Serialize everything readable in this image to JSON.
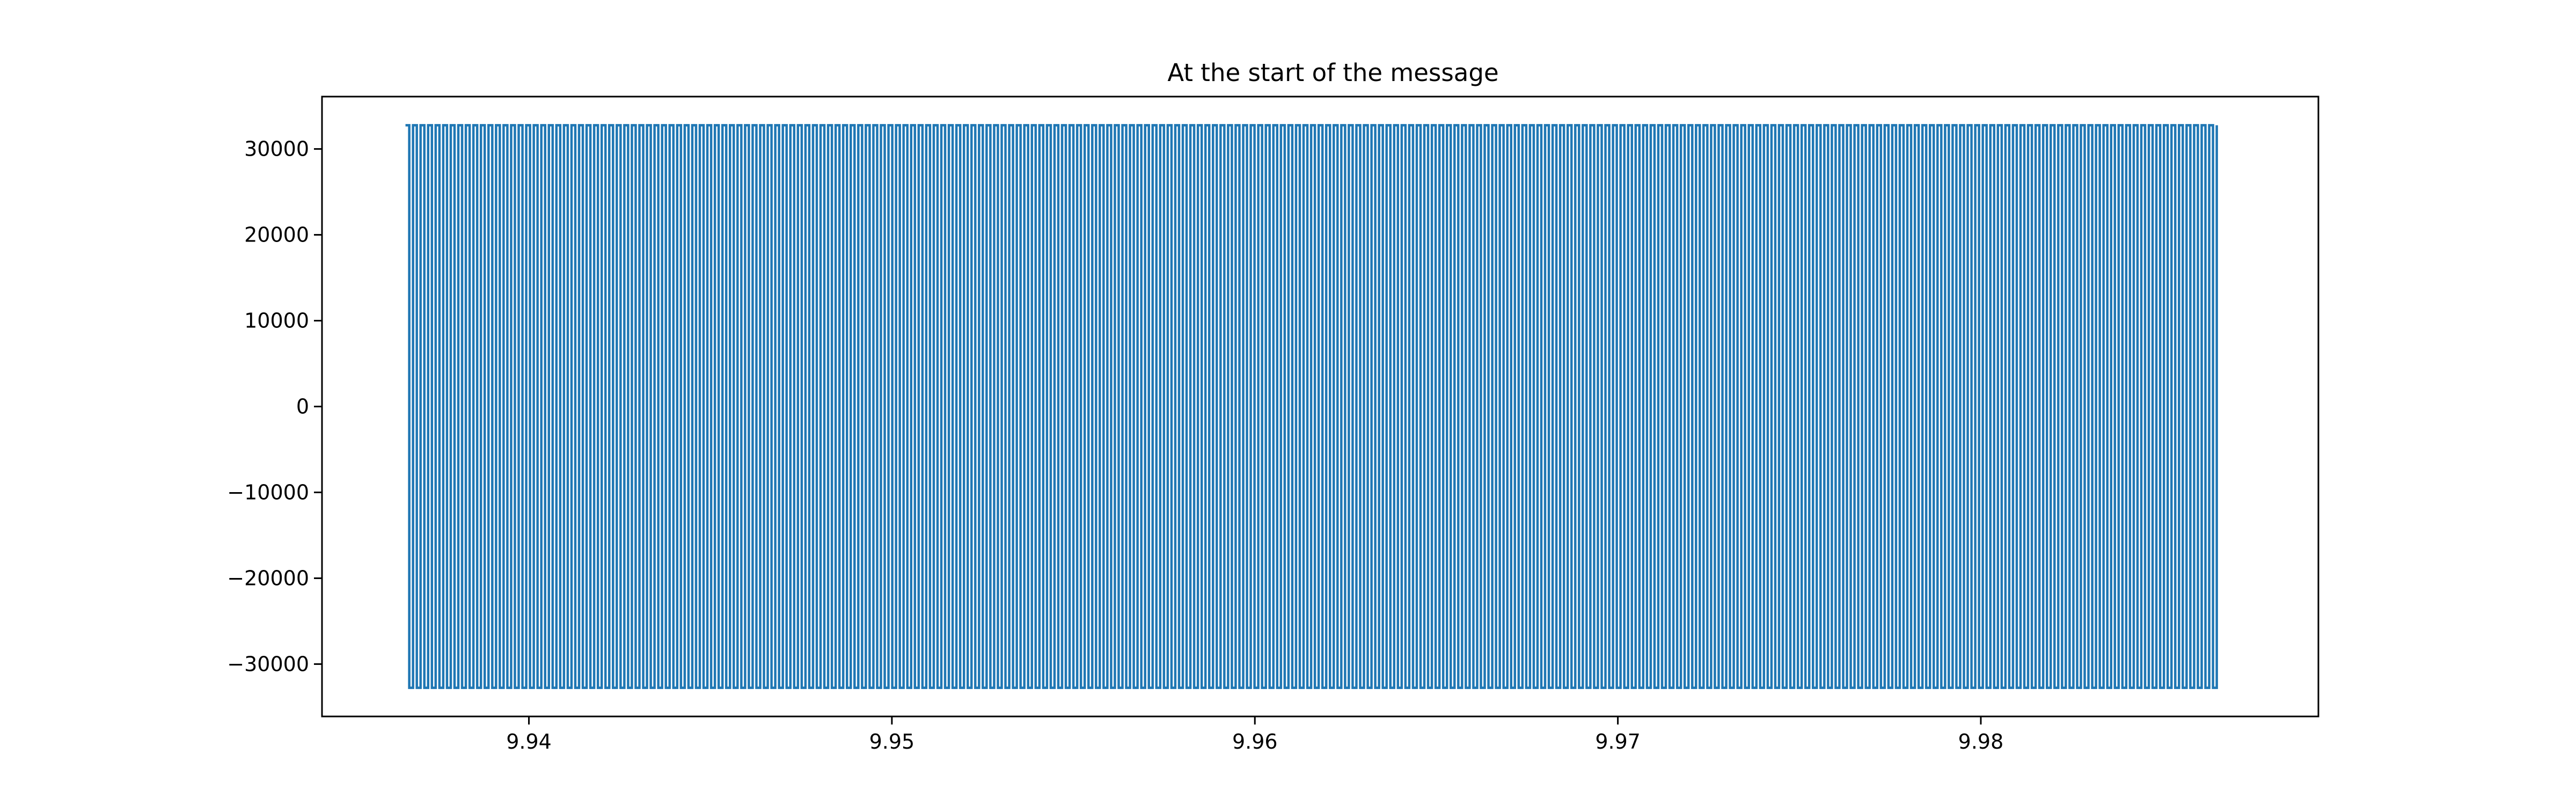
{
  "chart_data": {
    "type": "line",
    "title": "At the start of the message",
    "xlabel": "",
    "ylabel": "",
    "xlim": [
      9.9343,
      9.9893
    ],
    "ylim": [
      -36100,
      36100
    ],
    "x_ticks": [
      9.94,
      9.95,
      9.96,
      9.97,
      9.98
    ],
    "x_tick_labels": [
      "9.94",
      "9.95",
      "9.96",
      "9.97",
      "9.98"
    ],
    "y_ticks": [
      30000,
      20000,
      10000,
      0,
      -10000,
      -20000,
      -30000
    ],
    "y_tick_labels": [
      "30000",
      "20000",
      "10000",
      "0",
      "−10000",
      "−20000",
      "−30000"
    ],
    "grid": false,
    "legend": "none",
    "series": [
      {
        "color": "#1f77b4",
        "style": "square-wave",
        "x_start": 9.9366,
        "x_end": 9.9865,
        "high": 32767,
        "low": -32767,
        "periods": 240
      }
    ]
  }
}
